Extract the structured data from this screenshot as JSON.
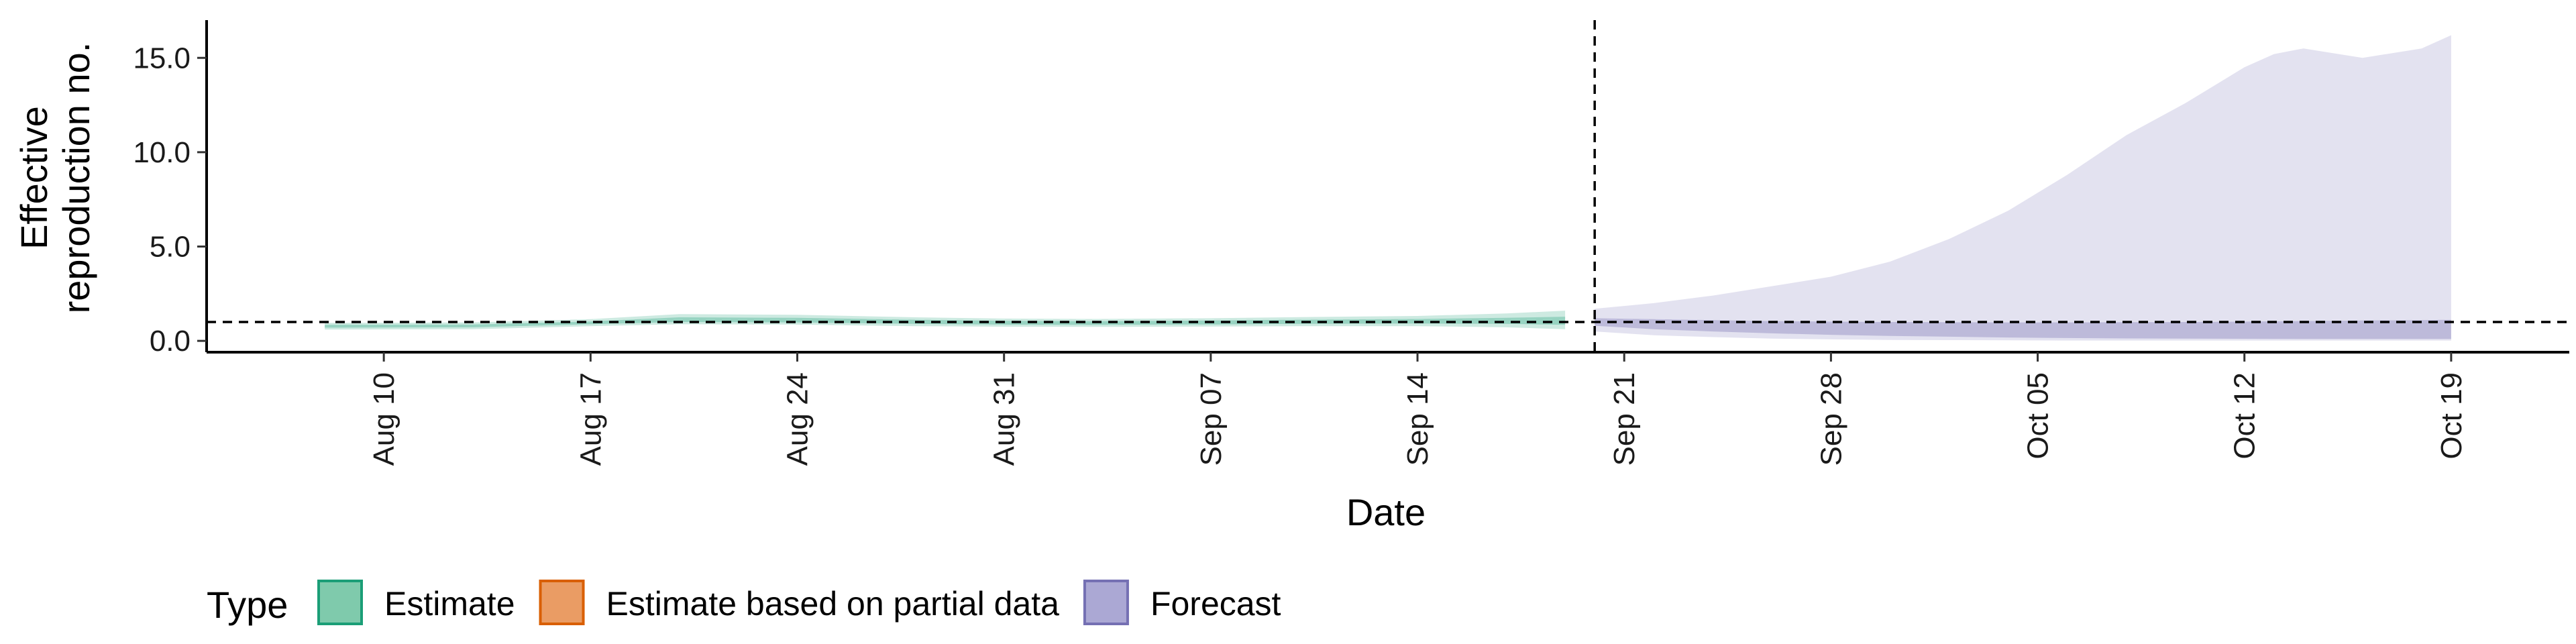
{
  "chart_data": {
    "type": "area",
    "xlabel": "Date",
    "ylabel_lines": [
      "Effective",
      "reproduction no."
    ],
    "ylim": [
      -0.6,
      17.0
    ],
    "yticks": [
      0.0,
      5.0,
      10.0,
      15.0
    ],
    "ytick_labels": [
      "0.0",
      "5.0",
      "10.0",
      "15.0"
    ],
    "xlim": [
      "2020-08-04",
      "2020-10-23"
    ],
    "xticks": [
      "2020-08-10",
      "2020-08-17",
      "2020-08-24",
      "2020-08-31",
      "2020-09-07",
      "2020-09-14",
      "2020-09-21",
      "2020-09-28",
      "2020-10-05",
      "2020-10-12",
      "2020-10-19"
    ],
    "xtick_labels": [
      "Aug 10",
      "Aug 17",
      "Aug 24",
      "Aug 31",
      "Sep 07",
      "Sep 14",
      "Sep 21",
      "Sep 28",
      "Oct 05",
      "Oct 12",
      "Oct 19"
    ],
    "reference_lines": {
      "horizontal_y": 1.0,
      "vertical_x": "2020-09-20"
    },
    "legend": {
      "title": "Type",
      "position": "bottom",
      "entries": [
        {
          "label": "Estimate",
          "fill": "#7fcaac",
          "stroke": "#1b9e77"
        },
        {
          "label": "Estimate based on partial data",
          "fill": "#ea9c64",
          "stroke": "#d95f02"
        },
        {
          "label": "Forecast",
          "fill": "#aba8d4",
          "stroke": "#7570b3"
        }
      ]
    },
    "series": [
      {
        "name": "Estimate",
        "color": "#1b9e77",
        "bands": [
          {
            "opacity": 0.22,
            "x": [
              "2020-08-08",
              "2020-08-13",
              "2020-08-17",
              "2020-08-20",
              "2020-08-24",
              "2020-08-28",
              "2020-08-31",
              "2020-09-03",
              "2020-09-07",
              "2020-09-10",
              "2020-09-14",
              "2020-09-17",
              "2020-09-19"
            ],
            "lower": [
              0.6,
              0.62,
              0.78,
              0.88,
              0.86,
              0.78,
              0.75,
              0.74,
              0.76,
              0.78,
              0.78,
              0.72,
              0.62
            ],
            "upper": [
              0.95,
              0.98,
              1.15,
              1.42,
              1.38,
              1.25,
              1.18,
              1.16,
              1.2,
              1.26,
              1.32,
              1.45,
              1.6
            ]
          },
          {
            "opacity": 0.3,
            "x": [
              "2020-08-08",
              "2020-08-13",
              "2020-08-17",
              "2020-08-20",
              "2020-08-24",
              "2020-08-28",
              "2020-08-31",
              "2020-09-03",
              "2020-09-07",
              "2020-09-10",
              "2020-09-14",
              "2020-09-17",
              "2020-09-19"
            ],
            "lower": [
              0.7,
              0.72,
              0.88,
              1.0,
              0.98,
              0.9,
              0.86,
              0.85,
              0.87,
              0.9,
              0.92,
              0.9,
              0.85
            ],
            "upper": [
              0.85,
              0.87,
              1.03,
              1.25,
              1.22,
              1.12,
              1.06,
              1.04,
              1.08,
              1.12,
              1.16,
              1.22,
              1.28
            ]
          }
        ]
      },
      {
        "name": "Forecast",
        "color": "#7570b3",
        "bands": [
          {
            "opacity": 0.2,
            "x": [
              "2020-09-20",
              "2020-09-22",
              "2020-09-24",
              "2020-09-26",
              "2020-09-28",
              "2020-09-30",
              "2020-10-02",
              "2020-10-04",
              "2020-10-06",
              "2020-10-08",
              "2020-10-10",
              "2020-10-12",
              "2020-10-13",
              "2020-10-14",
              "2020-10-16",
              "2020-10-18",
              "2020-10-19"
            ],
            "lower": [
              0.5,
              0.3,
              0.2,
              0.12,
              0.08,
              0.05,
              0.04,
              0.03,
              0.02,
              0.02,
              0.02,
              0.02,
              0.02,
              0.02,
              0.02,
              0.02,
              0.02
            ],
            "upper": [
              1.7,
              2.0,
              2.4,
              2.9,
              3.4,
              4.2,
              5.4,
              6.9,
              8.8,
              10.9,
              12.6,
              14.5,
              15.2,
              15.5,
              15.0,
              15.5,
              16.2
            ]
          },
          {
            "opacity": 0.35,
            "x": [
              "2020-09-20",
              "2020-09-22",
              "2020-09-24",
              "2020-09-26",
              "2020-09-28",
              "2020-09-30",
              "2020-10-02",
              "2020-10-04",
              "2020-10-06",
              "2020-10-08",
              "2020-10-10",
              "2020-10-12",
              "2020-10-14",
              "2020-10-16",
              "2020-10-18",
              "2020-10-19"
            ],
            "lower": [
              0.8,
              0.62,
              0.5,
              0.4,
              0.32,
              0.26,
              0.22,
              0.18,
              0.15,
              0.13,
              0.12,
              0.11,
              0.1,
              0.1,
              0.1,
              0.1
            ],
            "upper": [
              1.2,
              1.15,
              1.1,
              1.05,
              1.02,
              1.0,
              0.99,
              0.98,
              0.98,
              0.99,
              1.0,
              1.02,
              1.05,
              1.08,
              1.1,
              1.12
            ]
          }
        ]
      }
    ]
  }
}
